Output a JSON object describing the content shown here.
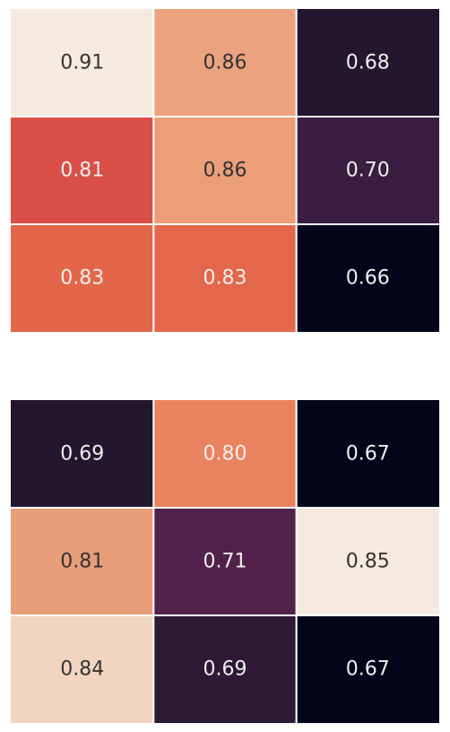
{
  "chart_data": [
    {
      "type": "heatmap",
      "rows": 3,
      "cols": 3,
      "values": [
        [
          0.91,
          0.86,
          0.68
        ],
        [
          0.81,
          0.86,
          0.7
        ],
        [
          0.83,
          0.83,
          0.66
        ]
      ],
      "labels": [
        [
          "0.91",
          "0.86",
          "0.68"
        ],
        [
          "0.81",
          "0.86",
          "0.70"
        ],
        [
          "0.83",
          "0.83",
          "0.66"
        ]
      ],
      "colors": [
        [
          "#f6e9e0",
          "#eba37f",
          "#231730"
        ],
        [
          "#d94f46",
          "#eb9e78",
          "#3a1d40"
        ],
        [
          "#e3664a",
          "#e3684b",
          "#03051a"
        ]
      ],
      "text_colors": [
        [
          "#333333",
          "#333333",
          "#eeeeee"
        ],
        [
          "#eeeeee",
          "#333333",
          "#eeeeee"
        ],
        [
          "#eeeeee",
          "#eeeeee",
          "#eeeeee"
        ]
      ]
    },
    {
      "type": "heatmap",
      "rows": 3,
      "cols": 3,
      "values": [
        [
          0.69,
          0.8,
          0.67
        ],
        [
          0.81,
          0.71,
          0.85
        ],
        [
          0.84,
          0.69,
          0.67
        ]
      ],
      "labels": [
        [
          "0.69",
          "0.80",
          "0.67"
        ],
        [
          "0.81",
          "0.71",
          "0.85"
        ],
        [
          "0.84",
          "0.69",
          "0.67"
        ]
      ],
      "colors": [
        [
          "#231730",
          "#e9825e",
          "#03051a"
        ],
        [
          "#e89e79",
          "#52214b",
          "#f6e9e0"
        ],
        [
          "#f2d5c0",
          "#2e1a36",
          "#03051a"
        ]
      ],
      "text_colors": [
        [
          "#eeeeee",
          "#eeeeee",
          "#eeeeee"
        ],
        [
          "#333333",
          "#eeeeee",
          "#333333"
        ],
        [
          "#333333",
          "#eeeeee",
          "#eeeeee"
        ]
      ]
    }
  ]
}
